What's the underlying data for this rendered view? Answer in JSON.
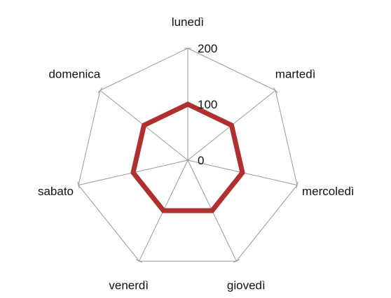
{
  "chart_data": {
    "type": "radar",
    "categories": [
      "lunedì",
      "martedì",
      "mercoledì",
      "giovedì",
      "venerdì",
      "sabato",
      "domenica"
    ],
    "series": [
      {
        "values": [
          100,
          100,
          100,
          100,
          100,
          100,
          100
        ],
        "color": "#b03030"
      }
    ],
    "rlim": [
      0,
      200
    ],
    "ticks": [
      0,
      100,
      200
    ],
    "tick_labels": [
      "0",
      "100",
      "200"
    ],
    "grid": true,
    "grid_color": "#999999",
    "legend": "none"
  }
}
